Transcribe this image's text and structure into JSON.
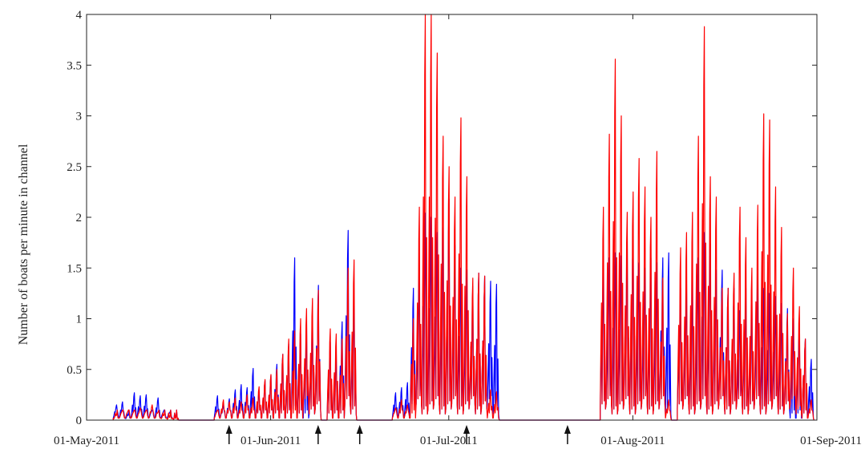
{
  "chart_data": {
    "type": "line",
    "title": "",
    "ylabel": "Number of boats per minute in channel",
    "xlabel": "",
    "xlim": [
      "2011-05-01",
      "2011-09-01"
    ],
    "ylim": [
      0,
      4
    ],
    "x_ticks": [
      "2011-05-01",
      "2011-06-01",
      "2011-07-01",
      "2011-08-01",
      "2011-09-01"
    ],
    "x_tick_labels": [
      "01-May-2011",
      "01-Jun-2011",
      "01-Jul-2011",
      "01-Aug-2011",
      "01-Sep-2011"
    ],
    "y_ticks": [
      0,
      0.5,
      1,
      1.5,
      2,
      2.5,
      3,
      3.5,
      4
    ],
    "y_tick_labels": [
      "0",
      "0.5",
      "1",
      "1.5",
      "2",
      "2.5",
      "3",
      "3.5",
      "4"
    ],
    "grid": false,
    "box": true,
    "arrow_markers": [
      "2011-05-25",
      "2011-06-09",
      "2011-06-16",
      "2011-07-04",
      "2011-07-21"
    ],
    "series": [
      {
        "color": "#0000ff",
        "x": [
          "2011-05-06",
          "2011-05-07",
          "2011-05-08",
          "2011-05-09",
          "2011-05-10",
          "2011-05-11",
          "2011-05-12",
          "2011-05-13",
          "2011-05-14",
          "2011-05-15",
          "2011-05-16",
          "2011-05-23",
          "2011-05-24",
          "2011-05-25",
          "2011-05-26",
          "2011-05-27",
          "2011-05-28",
          "2011-05-29",
          "2011-05-30",
          "2011-05-31",
          "2011-06-01",
          "2011-06-02",
          "2011-06-03",
          "2011-06-04",
          "2011-06-05",
          "2011-06-06",
          "2011-06-07",
          "2011-06-08",
          "2011-06-09",
          "2011-06-11",
          "2011-06-12",
          "2011-06-13",
          "2011-06-14",
          "2011-06-15",
          "2011-06-22",
          "2011-06-23",
          "2011-06-24",
          "2011-06-25",
          "2011-06-26",
          "2011-06-27",
          "2011-06-28",
          "2011-06-29",
          "2011-06-30",
          "2011-07-01",
          "2011-07-02",
          "2011-07-03",
          "2011-07-04",
          "2011-07-05",
          "2011-07-06",
          "2011-07-07",
          "2011-07-08",
          "2011-07-09",
          "2011-07-27",
          "2011-07-28",
          "2011-07-29",
          "2011-07-30",
          "2011-07-31",
          "2011-08-01",
          "2011-08-02",
          "2011-08-03",
          "2011-08-04",
          "2011-08-05",
          "2011-08-06",
          "2011-08-07",
          "2011-08-09",
          "2011-08-10",
          "2011-08-11",
          "2011-08-12",
          "2011-08-13",
          "2011-08-14",
          "2011-08-15",
          "2011-08-16",
          "2011-08-17",
          "2011-08-18",
          "2011-08-19",
          "2011-08-20",
          "2011-08-21",
          "2011-08-22",
          "2011-08-23",
          "2011-08-24",
          "2011-08-25",
          "2011-08-26",
          "2011-08-27",
          "2011-08-28",
          "2011-08-29",
          "2011-08-30",
          "2011-08-31"
        ],
        "y": [
          0.15,
          0.18,
          0.05,
          0.27,
          0.24,
          0.25,
          0.1,
          0.22,
          0.1,
          0.08,
          0.03,
          0.24,
          0.15,
          0.21,
          0.3,
          0.35,
          0.32,
          0.51,
          0.28,
          0.39,
          0.44,
          0.55,
          0.65,
          0.75,
          1.6,
          0.85,
          0.95,
          1.05,
          1.33,
          0.77,
          0.66,
          0.97,
          1.87,
          1.15,
          0.27,
          0.32,
          0.37,
          1.3,
          1.5,
          2.04,
          2.0,
          1.85,
          1.9,
          2.18,
          1.72,
          1.5,
          1.48,
          1.32,
          1.45,
          1.42,
          1.37,
          1.34,
          1.52,
          1.6,
          1.65,
          1.62,
          1.8,
          1.85,
          1.55,
          1.5,
          1.6,
          1.55,
          1.6,
          1.65,
          1.3,
          1.35,
          1.43,
          1.6,
          1.85,
          1.74,
          1.48,
          1.48,
          1.3,
          1.3,
          1.08,
          1.3,
          1.15,
          1.55,
          1.3,
          1.25,
          1.22,
          1.15,
          1.1,
          1.0,
          0.9,
          0.8,
          0.6
        ]
      },
      {
        "color": "#ff0000",
        "x": [
          "2011-05-06",
          "2011-05-07",
          "2011-05-08",
          "2011-05-09",
          "2011-05-10",
          "2011-05-11",
          "2011-05-12",
          "2011-05-13",
          "2011-05-14",
          "2011-05-15",
          "2011-05-16",
          "2011-05-23",
          "2011-05-24",
          "2011-05-25",
          "2011-05-26",
          "2011-05-27",
          "2011-05-28",
          "2011-05-29",
          "2011-05-30",
          "2011-05-31",
          "2011-06-01",
          "2011-06-02",
          "2011-06-03",
          "2011-06-04",
          "2011-06-05",
          "2011-06-06",
          "2011-06-07",
          "2011-06-08",
          "2011-06-09",
          "2011-06-11",
          "2011-06-12",
          "2011-06-13",
          "2011-06-14",
          "2011-06-15",
          "2011-06-22",
          "2011-06-23",
          "2011-06-24",
          "2011-06-25",
          "2011-06-26",
          "2011-06-27",
          "2011-06-28",
          "2011-06-29",
          "2011-06-30",
          "2011-07-01",
          "2011-07-02",
          "2011-07-03",
          "2011-07-04",
          "2011-07-05",
          "2011-07-06",
          "2011-07-07",
          "2011-07-08",
          "2011-07-09",
          "2011-07-27",
          "2011-07-28",
          "2011-07-29",
          "2011-07-30",
          "2011-07-31",
          "2011-08-01",
          "2011-08-02",
          "2011-08-03",
          "2011-08-04",
          "2011-08-05",
          "2011-08-06",
          "2011-08-07",
          "2011-08-09",
          "2011-08-10",
          "2011-08-11",
          "2011-08-12",
          "2011-08-13",
          "2011-08-14",
          "2011-08-15",
          "2011-08-16",
          "2011-08-17",
          "2011-08-18",
          "2011-08-19",
          "2011-08-20",
          "2011-08-21",
          "2011-08-22",
          "2011-08-23",
          "2011-08-24",
          "2011-08-25",
          "2011-08-26",
          "2011-08-27",
          "2011-08-28",
          "2011-08-29",
          "2011-08-30",
          "2011-08-31"
        ],
        "y": [
          0.05,
          0.1,
          0.1,
          0.1,
          0.12,
          0.1,
          0.15,
          0.08,
          0.05,
          0.03,
          0.02,
          0.1,
          0.2,
          0.18,
          0.22,
          0.18,
          0.25,
          0.22,
          0.33,
          0.4,
          0.45,
          0.5,
          0.65,
          0.8,
          0.88,
          1.0,
          1.1,
          1.2,
          1.28,
          0.9,
          0.85,
          0.8,
          1.5,
          1.58,
          0.12,
          0.2,
          0.15,
          1.0,
          2.1,
          4.0,
          4.0,
          3.62,
          2.8,
          2.5,
          2.2,
          2.98,
          2.4,
          1.4,
          1.45,
          1.42,
          0.3,
          0.28,
          2.1,
          2.82,
          3.56,
          3.0,
          2.05,
          2.25,
          2.58,
          2.3,
          2.0,
          2.65,
          1.4,
          0.2,
          1.7,
          1.85,
          2.05,
          2.8,
          3.88,
          2.4,
          2.2,
          1.3,
          1.3,
          1.45,
          2.1,
          1.8,
          1.5,
          2.12,
          3.02,
          2.96,
          2.3,
          1.9,
          1.05,
          1.5,
          1.12,
          0.8,
          0.2
        ]
      }
    ]
  }
}
